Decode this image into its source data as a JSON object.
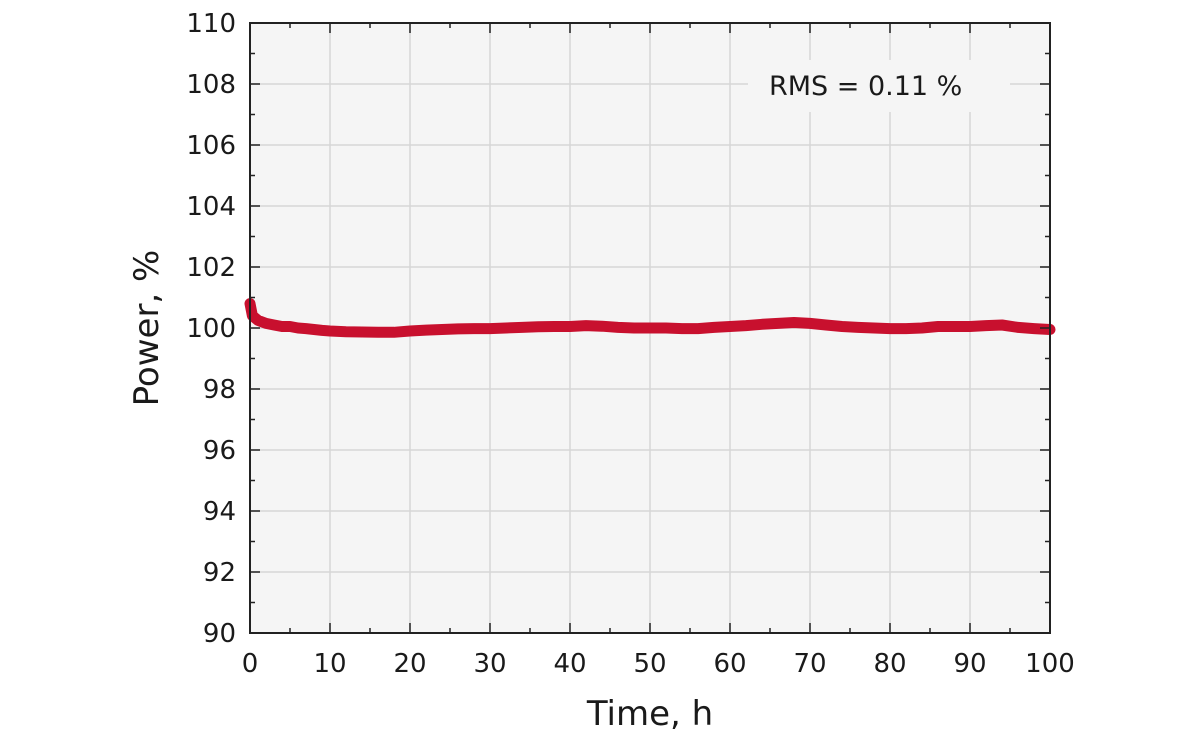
{
  "chart_data": {
    "type": "line",
    "xlabel": "Time, h",
    "ylabel": "Power, %",
    "xlim": [
      0,
      100
    ],
    "ylim": [
      90,
      110
    ],
    "x_ticks": [
      0,
      10,
      20,
      30,
      40,
      50,
      60,
      70,
      80,
      90,
      100
    ],
    "y_ticks": [
      90,
      92,
      94,
      96,
      98,
      100,
      102,
      104,
      106,
      108,
      110
    ],
    "grid": true,
    "annotation": "RMS = 0.11 %",
    "colors": {
      "series": "#c8102e",
      "plot_background": "#f5f5f5",
      "grid": "#d6d6d6",
      "frame": "#222222"
    },
    "series": [
      {
        "x": [
          0,
          0.3,
          1,
          2,
          3,
          4,
          5,
          6,
          7,
          8,
          9,
          10,
          12,
          14,
          16,
          18,
          20,
          22,
          24,
          26,
          28,
          30,
          32,
          34,
          36,
          38,
          40,
          42,
          44,
          46,
          48,
          50,
          52,
          54,
          56,
          58,
          60,
          62,
          64,
          66,
          68,
          70,
          72,
          74,
          76,
          78,
          80,
          82,
          84,
          86,
          88,
          90,
          92,
          94,
          96,
          98,
          100
        ],
        "y": [
          100.8,
          100.4,
          100.25,
          100.15,
          100.1,
          100.05,
          100.05,
          100.0,
          99.98,
          99.95,
          99.92,
          99.9,
          99.88,
          99.87,
          99.86,
          99.86,
          99.9,
          99.93,
          99.95,
          99.97,
          99.98,
          99.98,
          100.0,
          100.02,
          100.04,
          100.05,
          100.05,
          100.08,
          100.06,
          100.02,
          100.0,
          100.0,
          100.0,
          99.98,
          99.98,
          100.02,
          100.05,
          100.08,
          100.12,
          100.15,
          100.18,
          100.15,
          100.1,
          100.05,
          100.02,
          100.0,
          99.98,
          99.98,
          100.0,
          100.05,
          100.05,
          100.05,
          100.08,
          100.1,
          100.02,
          99.98,
          99.95
        ]
      }
    ]
  }
}
